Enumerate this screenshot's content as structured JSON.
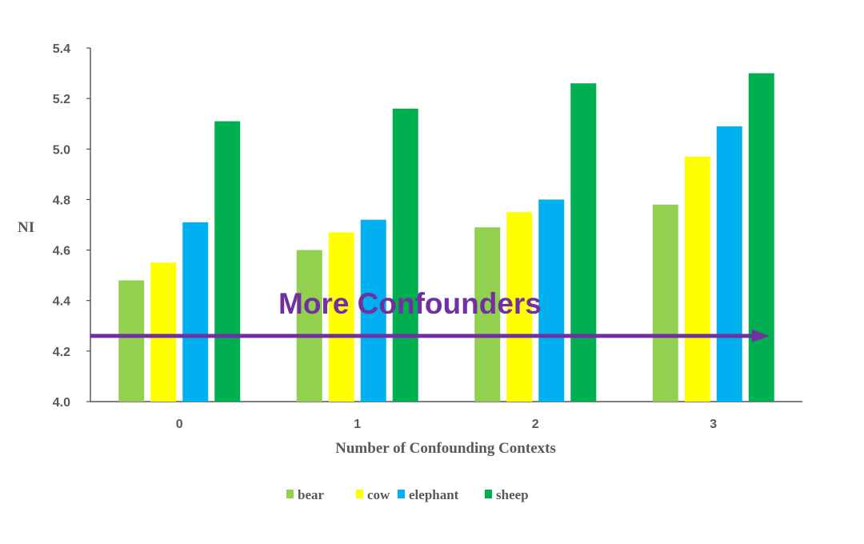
{
  "chart_data": {
    "type": "bar",
    "title": "",
    "xlabel": "Number of Confounding Contexts",
    "ylabel": "NI",
    "ylim": [
      4.0,
      5.4
    ],
    "yticks": [
      "4.0",
      "4.2",
      "4.4",
      "4.6",
      "4.8",
      "5.0",
      "5.2",
      "5.4"
    ],
    "categories": [
      "0",
      "1",
      "2",
      "3"
    ],
    "series": [
      {
        "name": "bear",
        "color": "#92d050",
        "values": [
          4.48,
          4.6,
          4.69,
          4.78
        ]
      },
      {
        "name": "cow",
        "color": "#ffff00",
        "values": [
          4.55,
          4.67,
          4.75,
          4.97
        ]
      },
      {
        "name": "elephant",
        "color": "#00b0f0",
        "values": [
          4.71,
          4.72,
          4.8,
          5.09
        ]
      },
      {
        "name": "sheep",
        "color": "#00b050",
        "values": [
          5.11,
          5.16,
          5.26,
          5.3
        ]
      }
    ],
    "legend_position": "bottom",
    "grid": false,
    "annotation": {
      "text": "More Confounders",
      "color": "#7030a0",
      "arrow_y_value": 4.26
    }
  }
}
